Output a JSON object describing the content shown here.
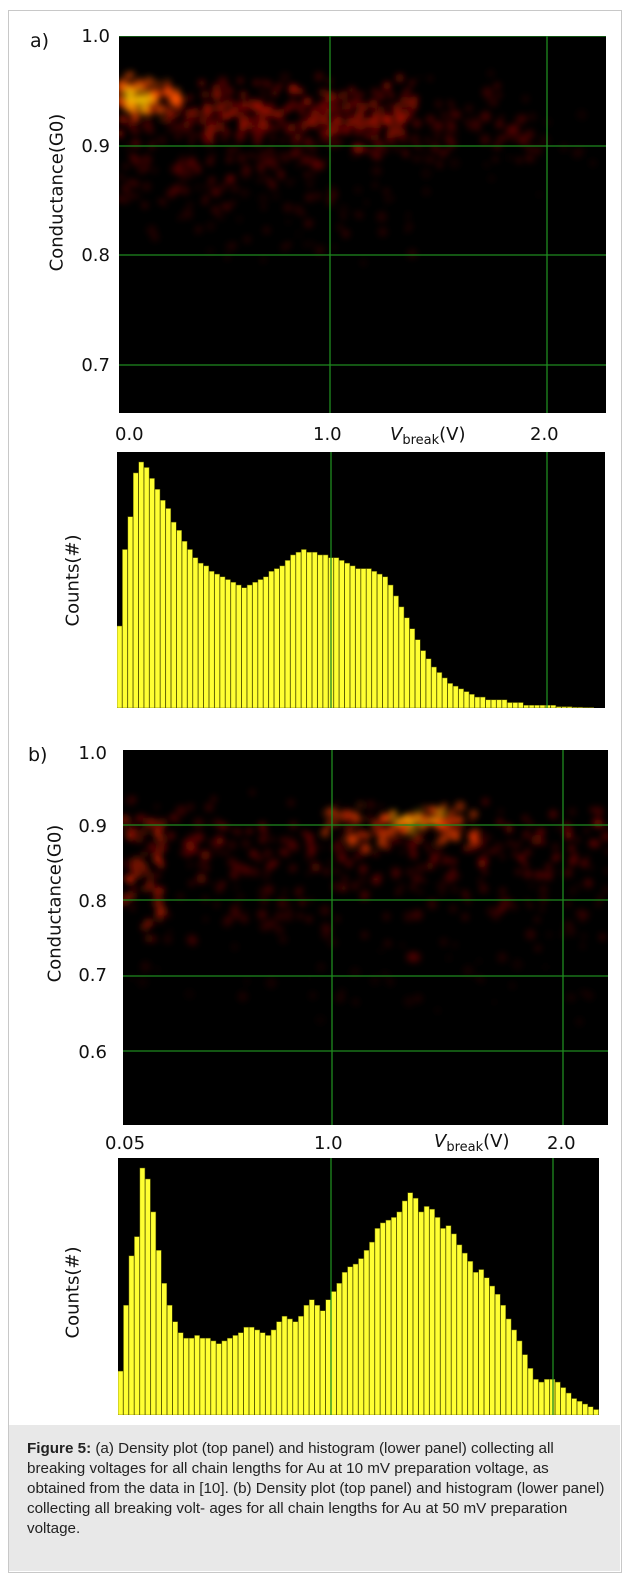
{
  "panels": [
    {
      "letter": "a)",
      "density": {
        "type": "heatmap",
        "ylabel": "Conductance(G0)",
        "yticks": [
          "1.0",
          "0.9",
          "0.8",
          "0.7"
        ],
        "ylim": [
          0.665,
          1.0
        ],
        "xticks": [
          "0.0",
          "1.0",
          "2.0"
        ],
        "xlim": [
          -0.05,
          2.23
        ],
        "xlabel_main": "V",
        "xlabel_sub": "break",
        "xlabel_unit": "(V)",
        "grid": true
      },
      "histogram": {
        "type": "bar",
        "ylabel": "Counts(#)",
        "bar_color": "#ffff33",
        "values": [
          30,
          58,
          70,
          86,
          90,
          88,
          84,
          80,
          76,
          73,
          68,
          65,
          61,
          58,
          55,
          53,
          52,
          50,
          49,
          48,
          47,
          46,
          45,
          44,
          45,
          46,
          47,
          48,
          50,
          51,
          52,
          54,
          56,
          57,
          58,
          57,
          57,
          56,
          56,
          55,
          55,
          54,
          53,
          52,
          51,
          51,
          51,
          50,
          49,
          48,
          45,
          41,
          37,
          33,
          29,
          25,
          21,
          18,
          15,
          13,
          11,
          9,
          8,
          7,
          6,
          5,
          4,
          4,
          3,
          3,
          3,
          3,
          2,
          2,
          2,
          1,
          1,
          1,
          1,
          1,
          1,
          0.5,
          0.5,
          0.5,
          0.3,
          0.3,
          0.2,
          0.2,
          0,
          0
        ]
      }
    },
    {
      "letter": "b)",
      "density": {
        "type": "heatmap",
        "ylabel": "Conductance(G0)",
        "yticks": [
          "1.0",
          "0.9",
          "0.8",
          "0.7",
          "0.6"
        ],
        "ylim": [
          0.5,
          1.0
        ],
        "xticks": [
          "0.05",
          "1.0",
          "2.0"
        ],
        "xlim": [
          0.05,
          2.25
        ],
        "xlabel_main": "V",
        "xlabel_sub": "break",
        "xlabel_unit": "(V)",
        "grid": true
      },
      "histogram": {
        "type": "bar",
        "ylabel": "Counts(#)",
        "bar_color": "#ffff33",
        "values": [
          16,
          40,
          58,
          65,
          90,
          86,
          74,
          60,
          48,
          40,
          34,
          30,
          28,
          28,
          29,
          28,
          28,
          27,
          26,
          27,
          28,
          29,
          30,
          32,
          32,
          31,
          30,
          29,
          31,
          34,
          36,
          35,
          34,
          36,
          40,
          42,
          40,
          38,
          42,
          45,
          48,
          52,
          54,
          55,
          57,
          60,
          63,
          68,
          70,
          71,
          72,
          74,
          78,
          81,
          79,
          74,
          76,
          75,
          72,
          68,
          69,
          66,
          62,
          59,
          56,
          52,
          53,
          50,
          47,
          44,
          40,
          35,
          31,
          27,
          22,
          17,
          13,
          12,
          13,
          13,
          12,
          10,
          8,
          6,
          5,
          4,
          3,
          2
        ]
      }
    }
  ],
  "caption": {
    "lead": "Figure 5:",
    "text": " (a) Density plot (top panel) and histogram (lower panel) collecting all breaking voltages for all chain lengths for Au at 10 mV preparation voltage, as obtained from the data in [10]. (b) Density plot (top panel) and histogram (lower panel) collecting all breaking volt- ages for all chain lengths for Au at 50 mV preparation voltage."
  }
}
